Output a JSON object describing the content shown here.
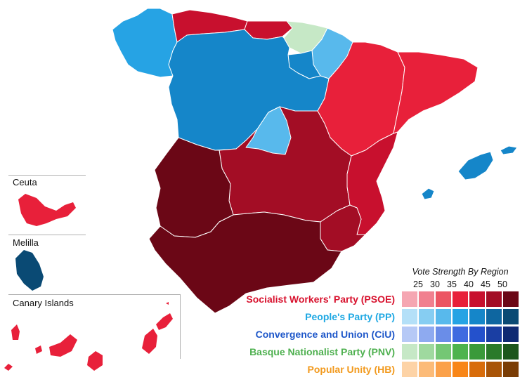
{
  "legend": {
    "title": "Vote Strength By Region",
    "ticks": [
      "25",
      "30",
      "35",
      "40",
      "45",
      "50"
    ],
    "parties": [
      {
        "name": "Socialist Workers' Party (PSOE)",
        "label_color": "#d8122e",
        "shades": [
          "#f5a6b2",
          "#f1808f",
          "#ec5563",
          "#e8203a",
          "#c8102e",
          "#a30d25",
          "#6b0716"
        ]
      },
      {
        "name": "People's Party (PP)",
        "label_color": "#1ea8e3",
        "shades": [
          "#b4e0f8",
          "#86cdf2",
          "#58b9ec",
          "#26a3e4",
          "#1586c9",
          "#0e66a0",
          "#0a4a74"
        ]
      },
      {
        "name": "Convergence and Union (CiU)",
        "label_color": "#1e57c9",
        "shades": [
          "#b6c9f6",
          "#8eaaf0",
          "#6a8de8",
          "#3f6be0",
          "#2451cc",
          "#1a3ea3",
          "#0f2a72"
        ]
      },
      {
        "name": "Basque Nationalist Party (PNV)",
        "label_color": "#4eb04f",
        "shades": [
          "#c6e8c6",
          "#9fd99f",
          "#74c774",
          "#4db34d",
          "#3a9a3a",
          "#2a7a2a",
          "#1c561c"
        ]
      },
      {
        "name": "Popular Unity (HB)",
        "label_color": "#f29a1e",
        "shades": [
          "#fdd3a6",
          "#fcbb78",
          "#fba14a",
          "#f88618",
          "#d86c0a",
          "#a85407",
          "#7a3d05"
        ]
      }
    ]
  },
  "insets": [
    {
      "name": "Ceuta",
      "fill": "#e8203a"
    },
    {
      "name": "Melilla",
      "fill": "#0a4a74"
    },
    {
      "name": "Canary Islands",
      "fill": "#e8203a"
    }
  ],
  "regions": [
    {
      "name": "Galicia",
      "fill": "#26a3e4"
    },
    {
      "name": "Asturias",
      "fill": "#c8102e"
    },
    {
      "name": "Cantabria",
      "fill": "#c8102e"
    },
    {
      "name": "Basque Country",
      "fill": "#c6e8c6"
    },
    {
      "name": "Navarre",
      "fill": "#58b9ec"
    },
    {
      "name": "La Rioja",
      "fill": "#1586c9"
    },
    {
      "name": "Castile and León",
      "fill": "#1586c9"
    },
    {
      "name": "Aragon",
      "fill": "#e8203a"
    },
    {
      "name": "Catalonia",
      "fill": "#e8203a"
    },
    {
      "name": "Madrid",
      "fill": "#58b9ec"
    },
    {
      "name": "Castile-La Mancha",
      "fill": "#a30d25"
    },
    {
      "name": "Extremadura",
      "fill": "#6b0716"
    },
    {
      "name": "Valencian Community",
      "fill": "#c8102e"
    },
    {
      "name": "Murcia",
      "fill": "#a30d25"
    },
    {
      "name": "Andalusia",
      "fill": "#6b0716"
    },
    {
      "name": "Balearic Islands",
      "fill": "#1586c9"
    }
  ]
}
